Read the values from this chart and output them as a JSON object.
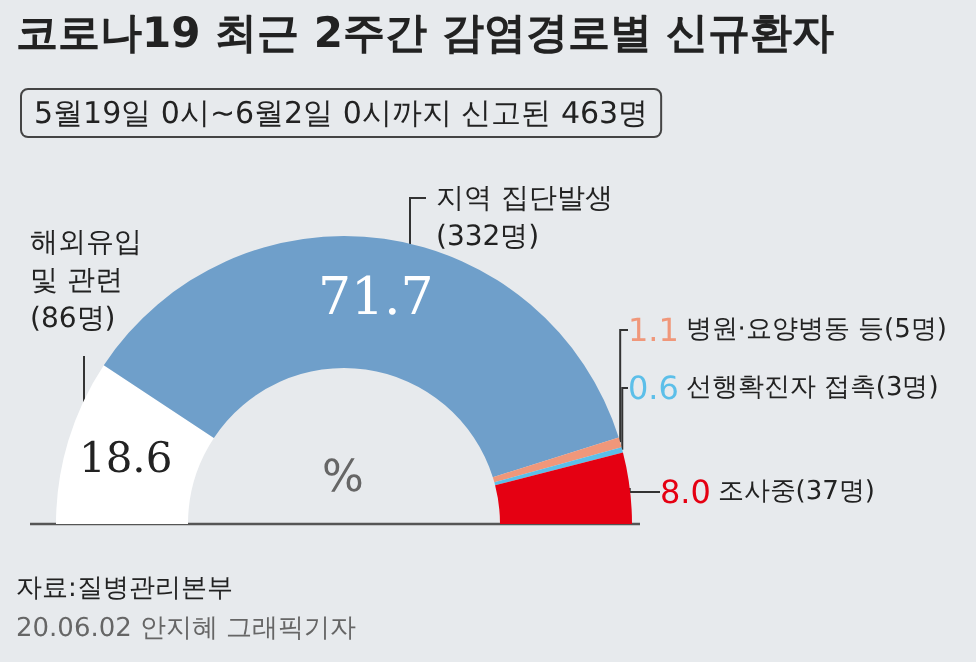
{
  "chart_data": {
    "type": "donut",
    "title": "코로나19 최근 2주간 감염경로별 신규환자",
    "subtitle": "5월19일 0시~6월2일 0시까지 신고된 463명",
    "categories": [
      "해외유입\n및 관련\n(86명)",
      "지역 집단발생\n(332명)",
      "병원·요양병동 등(5명)",
      "선행확진자 접촉(3명)",
      "조사중(37명)"
    ],
    "values": [
      18.6,
      71.7,
      1.1,
      0.6,
      8.0
    ],
    "colors": [
      "#ffffff",
      "#6f9fca",
      "#f0977a",
      "#5cbfe9",
      "#e50012"
    ],
    "value_labels": [
      "18.6",
      "71.7",
      "1.1",
      "0.6",
      "8.0"
    ],
    "legend": false,
    "annotations": [
      "%",
      "자료:질병관리본부",
      "20.06.02 안지혜 그래픽기자"
    ]
  }
}
